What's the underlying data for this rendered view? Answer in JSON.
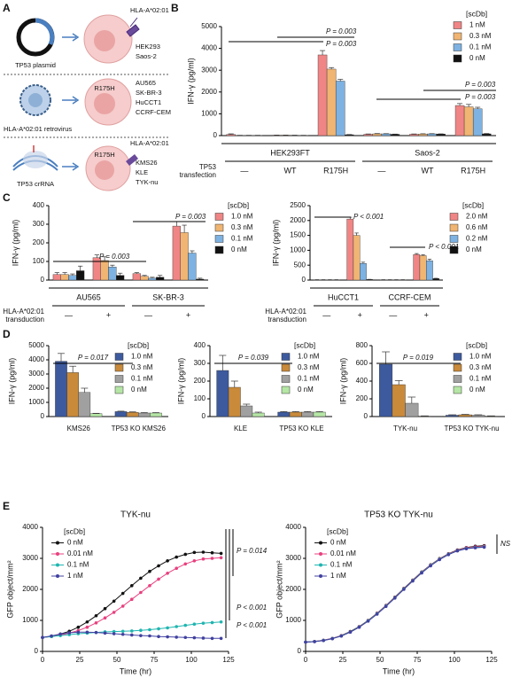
{
  "panel_labels": [
    "A",
    "B",
    "C",
    "D",
    "E"
  ],
  "schematic": {
    "plasmid": "TP53 plasmid",
    "row1_hla": "HLA-A*02:01",
    "row1_cells": [
      "HEK293",
      "Saos-2"
    ],
    "row2_mutation": "R175H",
    "row2_cells": [
      "AU565",
      "SK-BR-3",
      "HuCCT1",
      "CCRF-CEM"
    ],
    "retrovirus": "HLA-A*02:01 retrovirus",
    "row3_hla": "HLA-A*02:01",
    "row3_mutation": "R175H",
    "crRNA": "TP53 crRNA",
    "row3_cells": [
      "KMS26",
      "KLE",
      "TYK-nu"
    ]
  },
  "chart_data": [
    {
      "type": "bar",
      "y_label": "IFN-γ (pg/ml)",
      "legend_title": "[scDb]",
      "row_label": "TP53 transfection",
      "groups": [
        "HEK293FT",
        "Saos-2"
      ],
      "categories": [
        "—",
        "WT",
        "R175H",
        "—",
        "WT",
        "R175H"
      ],
      "ylim": [
        0,
        5000
      ],
      "yticks": [
        0,
        1000,
        2000,
        3000,
        4000,
        5000
      ],
      "series": [
        {
          "name": "1 nM",
          "color": "#f08585",
          "values": [
            50,
            20,
            3700,
            60,
            60,
            1380
          ],
          "errors": [
            30,
            5,
            200,
            15,
            15,
            90
          ]
        },
        {
          "name": "0.3 nM",
          "color": "#f0b572",
          "values": [
            10,
            20,
            3050,
            80,
            70,
            1320
          ],
          "errors": [
            5,
            5,
            70,
            15,
            15,
            110
          ]
        },
        {
          "name": "0.1 nM",
          "color": "#7db2e2",
          "values": [
            10,
            15,
            2500,
            80,
            80,
            1230
          ],
          "errors": [
            5,
            5,
            80,
            10,
            10,
            70
          ]
        },
        {
          "name": "0 nM",
          "color": "#111111",
          "values": [
            10,
            10,
            40,
            60,
            70,
            80
          ],
          "errors": [
            5,
            5,
            10,
            10,
            10,
            15
          ]
        }
      ],
      "annotations": [
        "P = 0.003",
        "P = 0.003",
        "P = 0.003",
        "P = 0.003"
      ]
    },
    {
      "type": "bar",
      "y_label": "IFN-γ (pg/ml)",
      "legend_title": "[scDb]",
      "row_label": "HLA-A*02:01 transduction",
      "groups": [
        "AU565",
        "SK-BR-3"
      ],
      "categories": [
        "—",
        "+",
        "—",
        "+"
      ],
      "ylim": [
        0,
        400
      ],
      "yticks": [
        0,
        100,
        200,
        300,
        400
      ],
      "series": [
        {
          "name": "1.0 nM",
          "color": "#f08585",
          "values": [
            30,
            120,
            35,
            290
          ],
          "errors": [
            10,
            15,
            5,
            25
          ]
        },
        {
          "name": "0.3 nM",
          "color": "#f0b572",
          "values": [
            30,
            105,
            20,
            255
          ],
          "errors": [
            10,
            20,
            5,
            40
          ]
        },
        {
          "name": "0.1 nM",
          "color": "#7db2e2",
          "values": [
            25,
            70,
            10,
            145
          ],
          "errors": [
            8,
            10,
            5,
            12
          ]
        },
        {
          "name": "0 nM",
          "color": "#111111",
          "values": [
            50,
            25,
            15,
            5
          ],
          "errors": [
            25,
            12,
            10,
            5
          ]
        }
      ],
      "annotations": [
        "P = 0.003",
        "P = 0.003"
      ]
    },
    {
      "type": "bar",
      "y_label": "IFN-γ (pg/ml)",
      "legend_title": "[scDb]",
      "row_label": "HLA-A*02:01 transduction",
      "groups": [
        "HuCCT1",
        "CCRF-CEM"
      ],
      "categories": [
        "—",
        "+",
        "—",
        "+"
      ],
      "ylim": [
        0,
        2500
      ],
      "yticks": [
        0,
        500,
        1000,
        1500,
        2000,
        2500
      ],
      "series": [
        {
          "name": "2.0 nM",
          "color": "#f08585",
          "values": [
            10,
            2050,
            10,
            860
          ],
          "errors": [
            3,
            60,
            3,
            30
          ]
        },
        {
          "name": "0.6 nM",
          "color": "#f0b572",
          "values": [
            10,
            1500,
            10,
            820
          ],
          "errors": [
            3,
            80,
            3,
            30
          ]
        },
        {
          "name": "0.2 nM",
          "color": "#7db2e2",
          "values": [
            10,
            560,
            10,
            650
          ],
          "errors": [
            3,
            40,
            3,
            50
          ]
        },
        {
          "name": "0 nM",
          "color": "#111111",
          "values": [
            10,
            20,
            10,
            50
          ],
          "errors": [
            3,
            5,
            3,
            10
          ]
        }
      ],
      "annotations": [
        "P < 0.001",
        "P < 0.001"
      ]
    },
    {
      "type": "bar",
      "y_label": "IFN-γ (pg/ml)",
      "legend_title": "[scDb]",
      "categories": [
        "KMS26",
        "TP53 KO KMS26"
      ],
      "ylim": [
        0,
        5000
      ],
      "yticks": [
        0,
        1000,
        2000,
        3000,
        4000,
        5000
      ],
      "series": [
        {
          "name": "1.0 nM",
          "color": "#3d5a9e",
          "values": [
            3900,
            350
          ],
          "errors": [
            550,
            30
          ]
        },
        {
          "name": "0.3 nM",
          "color": "#c98a3a",
          "values": [
            3100,
            300
          ],
          "errors": [
            450,
            30
          ]
        },
        {
          "name": "0.1 nM",
          "color": "#a0a0a0",
          "values": [
            1700,
            250
          ],
          "errors": [
            300,
            30
          ]
        },
        {
          "name": "0 nM",
          "color": "#b5e6a5",
          "values": [
            200,
            250
          ],
          "errors": [
            30,
            30
          ]
        }
      ],
      "annotations": [
        "P = 0.017"
      ]
    },
    {
      "type": "bar",
      "y_label": "IFN-γ (pg/ml)",
      "legend_title": "[scDb]",
      "categories": [
        "KLE",
        "TP53 KO KLE"
      ],
      "ylim": [
        0,
        400
      ],
      "yticks": [
        0,
        100,
        200,
        300,
        400
      ],
      "series": [
        {
          "name": "1.0 nM",
          "color": "#3d5a9e",
          "values": [
            260,
            25
          ],
          "errors": [
            85,
            3
          ]
        },
        {
          "name": "0.3 nM",
          "color": "#c98a3a",
          "values": [
            165,
            25
          ],
          "errors": [
            35,
            3
          ]
        },
        {
          "name": "0.1 nM",
          "color": "#a0a0a0",
          "values": [
            60,
            25
          ],
          "errors": [
            10,
            3
          ]
        },
        {
          "name": "0 nM",
          "color": "#b5e6a5",
          "values": [
            20,
            25
          ],
          "errors": [
            5,
            3
          ]
        }
      ],
      "annotations": [
        "P = 0.039"
      ]
    },
    {
      "type": "bar",
      "y_label": "IFN-γ (pg/ml)",
      "legend_title": "[scDb]",
      "categories": [
        "TYK-nu",
        "TP53 KO TYK-nu"
      ],
      "ylim": [
        0,
        800
      ],
      "yticks": [
        0,
        200,
        400,
        600,
        800
      ],
      "series": [
        {
          "name": "1.0 nM",
          "color": "#3d5a9e",
          "values": [
            590,
            15
          ],
          "errors": [
            140,
            5
          ]
        },
        {
          "name": "0.3 nM",
          "color": "#c98a3a",
          "values": [
            360,
            20
          ],
          "errors": [
            45,
            5
          ]
        },
        {
          "name": "0.1 nM",
          "color": "#a0a0a0",
          "values": [
            150,
            15
          ],
          "errors": [
            70,
            5
          ]
        },
        {
          "name": "0 nM",
          "color": "#b5e6a5",
          "values": [
            5,
            5
          ],
          "errors": [
            3,
            3
          ]
        }
      ],
      "annotations": [
        "P = 0.019"
      ]
    },
    {
      "type": "line",
      "title": "TYK-nu",
      "x_label": "Time (hr)",
      "y_label": "GFP object/mm²",
      "legend_title": "[scDb]",
      "x": [
        0,
        6,
        12,
        18,
        24,
        30,
        36,
        42,
        48,
        54,
        60,
        66,
        72,
        78,
        84,
        90,
        96,
        102,
        108,
        114,
        120
      ],
      "xlim": [
        0,
        125
      ],
      "xticks": [
        0,
        25,
        50,
        75,
        100,
        125
      ],
      "ylim": [
        0,
        4000
      ],
      "yticks": [
        0,
        1000,
        2000,
        3000,
        4000
      ],
      "series": [
        {
          "name": "0 nM",
          "color": "#111111",
          "values": [
            450,
            490,
            560,
            650,
            780,
            950,
            1150,
            1380,
            1620,
            1870,
            2120,
            2360,
            2580,
            2760,
            2920,
            3040,
            3130,
            3190,
            3200,
            3180,
            3160
          ]
        },
        {
          "name": "0.01 nM",
          "color": "#e8407f",
          "values": [
            450,
            480,
            530,
            590,
            670,
            780,
            920,
            1080,
            1260,
            1460,
            1680,
            1900,
            2120,
            2330,
            2520,
            2680,
            2820,
            2920,
            2980,
            3000,
            3020
          ]
        },
        {
          "name": "0.1 nM",
          "color": "#20b5b0",
          "values": [
            450,
            480,
            510,
            540,
            570,
            590,
            610,
            630,
            640,
            650,
            660,
            680,
            700,
            730,
            760,
            800,
            840,
            880,
            910,
            930,
            950
          ]
        },
        {
          "name": "1 nM",
          "color": "#4040a0",
          "values": [
            450,
            500,
            560,
            600,
            620,
            620,
            610,
            590,
            570,
            550,
            530,
            510,
            500,
            480,
            470,
            460,
            450,
            440,
            430,
            420,
            420
          ]
        }
      ],
      "annotations": [
        "P = 0.014",
        "P < 0.001",
        "P < 0.001"
      ]
    },
    {
      "type": "line",
      "title": "TP53 KO TYK-nu",
      "x_label": "Time (hr)",
      "y_label": "GFP object/mm²",
      "legend_title": "[scDb]",
      "x": [
        0,
        6,
        12,
        18,
        24,
        30,
        36,
        42,
        48,
        54,
        60,
        66,
        72,
        78,
        84,
        90,
        96,
        102,
        108,
        114,
        120
      ],
      "xlim": [
        0,
        125
      ],
      "xticks": [
        0,
        25,
        50,
        75,
        100,
        125
      ],
      "ylim": [
        0,
        4000
      ],
      "yticks": [
        0,
        1000,
        2000,
        3000,
        4000
      ],
      "series": [
        {
          "name": "0 nM",
          "color": "#111111",
          "values": [
            300,
            320,
            360,
            420,
            510,
            640,
            800,
            1000,
            1230,
            1480,
            1750,
            2030,
            2300,
            2560,
            2790,
            2990,
            3150,
            3270,
            3350,
            3390,
            3410
          ]
        },
        {
          "name": "0.01 nM",
          "color": "#e8407f",
          "values": [
            300,
            320,
            360,
            420,
            505,
            630,
            790,
            990,
            1220,
            1470,
            1740,
            2020,
            2290,
            2550,
            2780,
            2980,
            3140,
            3260,
            3340,
            3370,
            3390
          ]
        },
        {
          "name": "0.1 nM",
          "color": "#20b5b0",
          "values": [
            300,
            318,
            355,
            415,
            500,
            625,
            785,
            985,
            1210,
            1460,
            1730,
            2010,
            2280,
            2540,
            2770,
            2970,
            3130,
            3250,
            3320,
            3350,
            3370
          ]
        },
        {
          "name": "1 nM",
          "color": "#4040a0",
          "values": [
            300,
            315,
            350,
            410,
            495,
            620,
            780,
            975,
            1200,
            1450,
            1720,
            2000,
            2270,
            2530,
            2760,
            2960,
            3120,
            3240,
            3310,
            3340,
            3360
          ]
        }
      ],
      "annotations": [
        "NS"
      ]
    }
  ]
}
